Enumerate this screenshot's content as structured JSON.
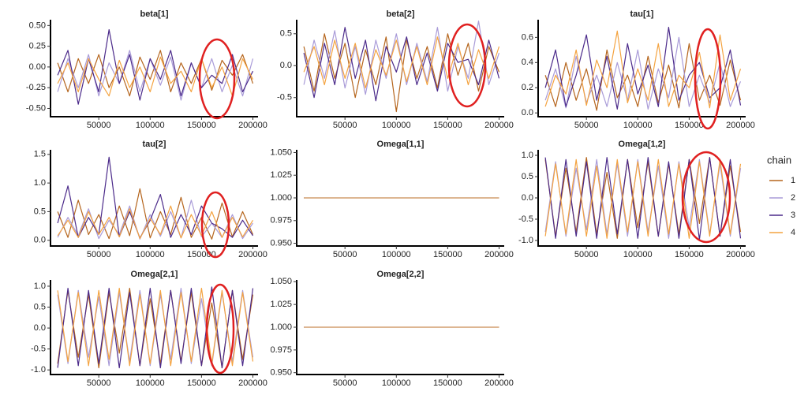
{
  "legend_title": "chain",
  "chart_data": [
    {
      "type": "line",
      "title": "beta[1]",
      "x": [
        10000,
        20000,
        30000,
        40000,
        50000,
        60000,
        70000,
        80000,
        90000,
        100000,
        110000,
        120000,
        130000,
        140000,
        150000,
        160000,
        170000,
        180000,
        190000,
        200000
      ],
      "xlim": [
        3000,
        205000
      ],
      "xticks": [
        50000,
        100000,
        150000,
        200000
      ],
      "ylim": [
        -0.6,
        0.57
      ],
      "yticks": [
        {
          "value": -0.5,
          "label": "-0.50"
        },
        -0.25,
        {
          "value": 0,
          "label": "0.00"
        },
        0.25,
        {
          "value": 0.5,
          "label": "0.50"
        }
      ],
      "series": [
        {
          "name": "1",
          "color": "#b5651d",
          "values": [
            0.05,
            -0.3,
            0.1,
            -0.2,
            0.15,
            -0.25,
            0.0,
            -0.35,
            0.12,
            -0.15,
            0.2,
            -0.3,
            0.05,
            -0.2,
            0.1,
            -0.28,
            0.08,
            -0.1,
            0.15,
            -0.2
          ]
        },
        {
          "name": "2",
          "color": "#a99bd8",
          "values": [
            -0.3,
            0.1,
            -0.25,
            0.15,
            -0.35,
            0.05,
            -0.2,
            0.2,
            -0.3,
            0.1,
            -0.22,
            0.12,
            -0.4,
            0.05,
            -0.25,
            0.1,
            -0.3,
            0.02,
            -0.35,
            0.1
          ]
        },
        {
          "name": "3",
          "color": "#4b2a8a",
          "values": [
            -0.1,
            0.2,
            -0.45,
            0.1,
            -0.3,
            0.45,
            -0.2,
            0.15,
            -0.4,
            0.1,
            -0.15,
            0.2,
            -0.35,
            0.05,
            -0.25,
            -0.1,
            -0.2,
            0.15,
            -0.3,
            -0.05
          ]
        },
        {
          "name": "4",
          "color": "#f4a340",
          "values": [
            -0.2,
            0.05,
            -0.3,
            0.1,
            -0.15,
            -0.35,
            0.08,
            -0.25,
            0.0,
            -0.3,
            0.12,
            -0.2,
            -0.05,
            -0.3,
            0.1,
            -0.25,
            0.0,
            -0.35,
            0.1,
            -0.15
          ]
        }
      ]
    },
    {
      "type": "line",
      "title": "beta[2]",
      "x": [
        10000,
        20000,
        30000,
        40000,
        50000,
        60000,
        70000,
        80000,
        90000,
        100000,
        110000,
        120000,
        130000,
        140000,
        150000,
        160000,
        170000,
        180000,
        190000,
        200000
      ],
      "xlim": [
        3000,
        205000
      ],
      "xticks": [
        50000,
        100000,
        150000,
        200000
      ],
      "ylim": [
        -0.8,
        0.72
      ],
      "yticks": [
        -0.5,
        {
          "value": 0,
          "label": "0.0"
        },
        0.5
      ],
      "series": [
        {
          "name": "1",
          "color": "#b5651d",
          "values": [
            0.3,
            -0.4,
            0.5,
            -0.2,
            0.35,
            -0.5,
            0.25,
            -0.3,
            0.45,
            -0.72,
            0.4,
            -0.2,
            0.3,
            -0.35,
            0.5,
            -0.15,
            0.35,
            -0.4,
            0.3,
            -0.1
          ]
        },
        {
          "name": "2",
          "color": "#a99bd8",
          "values": [
            -0.3,
            0.4,
            -0.2,
            0.55,
            -0.35,
            0.3,
            -0.45,
            0.4,
            -0.2,
            0.5,
            -0.3,
            0.35,
            -0.25,
            0.6,
            -0.4,
            0.3,
            -0.2,
            0.7,
            -0.3,
            0.2
          ]
        },
        {
          "name": "3",
          "color": "#4b2a8a",
          "values": [
            0.2,
            -0.5,
            0.35,
            -0.3,
            0.6,
            -0.2,
            0.4,
            -0.55,
            0.3,
            -0.1,
            0.45,
            -0.3,
            0.2,
            -0.4,
            0.35,
            0.05,
            0.1,
            -0.3,
            0.4,
            -0.2
          ]
        },
        {
          "name": "4",
          "color": "#f4a340",
          "values": [
            -0.1,
            0.3,
            -0.3,
            0.4,
            -0.2,
            0.35,
            -0.35,
            0.25,
            -0.15,
            0.4,
            -0.25,
            0.3,
            -0.3,
            0.45,
            -0.2,
            0.35,
            -0.3,
            0.25,
            -0.2,
            0.3
          ]
        }
      ]
    },
    {
      "type": "line",
      "title": "tau[1]",
      "x": [
        10000,
        20000,
        30000,
        40000,
        50000,
        60000,
        70000,
        80000,
        90000,
        100000,
        110000,
        120000,
        130000,
        140000,
        150000,
        160000,
        170000,
        180000,
        190000,
        200000
      ],
      "xlim": [
        3000,
        205000
      ],
      "xticks": [
        50000,
        100000,
        150000,
        200000
      ],
      "ylim": [
        -0.03,
        0.74
      ],
      "yticks": [
        {
          "value": 0,
          "label": "0.0"
        },
        0.2,
        0.4,
        0.6
      ],
      "series": [
        {
          "name": "1",
          "color": "#b5651d",
          "values": [
            0.3,
            0.05,
            0.4,
            0.1,
            0.35,
            0.02,
            0.5,
            0.12,
            0.3,
            0.05,
            0.45,
            0.08,
            0.38,
            0.04,
            0.55,
            0.1,
            0.3,
            0.06,
            0.42,
            0.1
          ]
        },
        {
          "name": "2",
          "color": "#a99bd8",
          "values": [
            0.1,
            0.35,
            0.04,
            0.45,
            0.08,
            0.3,
            0.05,
            0.4,
            0.1,
            0.5,
            0.03,
            0.35,
            0.12,
            0.6,
            0.05,
            0.3,
            0.08,
            0.4,
            0.05,
            0.25
          ]
        },
        {
          "name": "3",
          "color": "#4b2a8a",
          "values": [
            0.2,
            0.5,
            0.05,
            0.3,
            0.62,
            0.1,
            0.45,
            0.03,
            0.55,
            0.15,
            0.38,
            0.05,
            0.68,
            0.1,
            0.3,
            0.4,
            0.12,
            0.2,
            0.5,
            0.06
          ]
        },
        {
          "name": "4",
          "color": "#f4a340",
          "values": [
            0.05,
            0.3,
            0.15,
            0.5,
            0.06,
            0.42,
            0.2,
            0.65,
            0.08,
            0.35,
            0.1,
            0.55,
            0.05,
            0.3,
            0.2,
            0.48,
            0.04,
            0.62,
            0.1,
            0.35
          ]
        }
      ]
    },
    {
      "type": "line",
      "title": "tau[2]",
      "x": [
        10000,
        20000,
        30000,
        40000,
        50000,
        60000,
        70000,
        80000,
        90000,
        100000,
        110000,
        120000,
        130000,
        140000,
        150000,
        160000,
        170000,
        180000,
        190000,
        200000
      ],
      "xlim": [
        3000,
        205000
      ],
      "xticks": [
        50000,
        100000,
        150000,
        200000
      ],
      "ylim": [
        -0.1,
        1.58
      ],
      "yticks": [
        {
          "value": 0,
          "label": "0.0"
        },
        0.5,
        {
          "value": 1,
          "label": "1.0"
        },
        1.5
      ],
      "series": [
        {
          "name": "1",
          "color": "#b5651d",
          "values": [
            0.5,
            0.05,
            0.7,
            0.1,
            0.45,
            0.03,
            0.6,
            0.08,
            0.9,
            0.04,
            0.5,
            0.1,
            0.75,
            0.05,
            0.4,
            0.02,
            0.65,
            0.06,
            0.5,
            0.1
          ]
        },
        {
          "name": "2",
          "color": "#a99bd8",
          "values": [
            0.05,
            0.4,
            0.08,
            0.55,
            0.03,
            0.35,
            0.1,
            0.6,
            0.02,
            0.45,
            0.07,
            0.5,
            0.04,
            0.7,
            0.06,
            0.3,
            0.05,
            0.45,
            0.03,
            0.3
          ]
        },
        {
          "name": "3",
          "color": "#4b2a8a",
          "values": [
            0.3,
            0.95,
            0.05,
            0.4,
            0.1,
            1.45,
            0.06,
            0.5,
            0.04,
            0.35,
            0.8,
            0.05,
            0.45,
            0.1,
            0.6,
            0.3,
            0.2,
            0.05,
            0.35,
            0.08
          ]
        },
        {
          "name": "4",
          "color": "#f4a340",
          "values": [
            0.08,
            0.35,
            0.05,
            0.5,
            0.1,
            0.4,
            0.06,
            0.55,
            0.03,
            0.38,
            0.1,
            0.6,
            0.04,
            0.45,
            0.08,
            0.5,
            0.05,
            0.4,
            0.06,
            0.35
          ]
        }
      ]
    },
    {
      "type": "line",
      "title": "Omega[1,1]",
      "x": [
        10000,
        200000
      ],
      "xlim": [
        3000,
        205000
      ],
      "xticks": [
        50000,
        100000,
        150000,
        200000
      ],
      "ylim": [
        0.947,
        1.053
      ],
      "yticks": [
        {
          "value": 0.95,
          "label": "0.950"
        },
        0.975,
        {
          "value": 1,
          "label": "1.000"
        },
        1.025,
        {
          "value": 1.05,
          "label": "1.050"
        }
      ],
      "series": [
        {
          "name": "1",
          "color": "#b5651d",
          "values": [
            1,
            1
          ]
        },
        {
          "name": "2",
          "color": "#a99bd8",
          "values": [
            1,
            1
          ]
        },
        {
          "name": "3",
          "color": "#4b2a8a",
          "values": [
            1,
            1
          ]
        },
        {
          "name": "4",
          "color": "#f4c27a",
          "values": [
            1,
            1
          ]
        }
      ]
    },
    {
      "type": "line",
      "title": "Omega[1,2]",
      "x": [
        10000,
        20000,
        30000,
        40000,
        50000,
        60000,
        70000,
        80000,
        90000,
        100000,
        110000,
        120000,
        130000,
        140000,
        150000,
        160000,
        170000,
        180000,
        190000,
        200000
      ],
      "xlim": [
        3000,
        205000
      ],
      "xticks": [
        50000,
        100000,
        150000,
        200000
      ],
      "ylim": [
        -1.13,
        1.13
      ],
      "yticks": [
        {
          "value": -1,
          "label": "-1.0"
        },
        -0.5,
        {
          "value": 0,
          "label": "0.0"
        },
        0.5,
        {
          "value": 1,
          "label": "1.0"
        }
      ],
      "series": [
        {
          "name": "1",
          "color": "#b5651d",
          "values": [
            0.9,
            -0.9,
            0.7,
            -0.8,
            0.95,
            -0.85,
            0.6,
            -0.95,
            0.9,
            -0.7,
            0.85,
            -0.9,
            0.8,
            -0.85,
            0.9,
            -0.6,
            0.95,
            -0.9,
            0.75,
            -0.8
          ]
        },
        {
          "name": "2",
          "color": "#a99bd8",
          "values": [
            -0.8,
            0.85,
            -0.9,
            0.7,
            -0.75,
            0.9,
            -0.85,
            0.8,
            -0.9,
            0.9,
            -0.8,
            0.75,
            -0.95,
            0.85,
            -0.7,
            0.9,
            -0.85,
            0.8,
            -0.9,
            0.7
          ]
        },
        {
          "name": "3",
          "color": "#4b2a8a",
          "values": [
            0.95,
            -0.95,
            0.9,
            -0.9,
            0.85,
            -0.95,
            0.95,
            -0.85,
            0.9,
            -0.95,
            0.95,
            -0.9,
            0.85,
            -0.95,
            0.9,
            -0.98,
            0.95,
            -0.9,
            0.9,
            -0.95
          ]
        },
        {
          "name": "4",
          "color": "#f4a340",
          "values": [
            -0.9,
            0.8,
            -0.85,
            0.9,
            -0.9,
            0.75,
            -0.95,
            0.9,
            -0.8,
            0.85,
            -0.9,
            0.9,
            -0.85,
            0.8,
            -0.95,
            0.85,
            -0.9,
            0.9,
            -0.85,
            0.8
          ]
        }
      ]
    },
    {
      "type": "line",
      "title": "Omega[2,1]",
      "x": [
        10000,
        20000,
        30000,
        40000,
        50000,
        60000,
        70000,
        80000,
        90000,
        100000,
        110000,
        120000,
        130000,
        140000,
        150000,
        160000,
        170000,
        180000,
        190000,
        200000
      ],
      "xlim": [
        3000,
        205000
      ],
      "xticks": [
        50000,
        100000,
        150000,
        200000
      ],
      "ylim": [
        -1.11,
        1.15
      ],
      "yticks": [
        {
          "value": -1,
          "label": "-1.0"
        },
        -0.5,
        {
          "value": 0,
          "label": "0.0"
        },
        0.5,
        {
          "value": 1,
          "label": "1.0"
        }
      ],
      "series": [
        {
          "name": "1",
          "color": "#b5651d",
          "values": [
            -0.85,
            0.9,
            -0.7,
            0.8,
            -0.95,
            0.85,
            -0.6,
            0.95,
            -0.9,
            0.7,
            -0.85,
            0.9,
            -0.8,
            0.85,
            -0.9,
            0.6,
            -0.95,
            0.9,
            -0.75,
            0.8
          ]
        },
        {
          "name": "2",
          "color": "#a99bd8",
          "values": [
            0.8,
            -0.85,
            0.9,
            -0.7,
            0.75,
            -0.9,
            0.85,
            -0.8,
            0.9,
            -0.9,
            0.8,
            -0.75,
            0.95,
            -0.85,
            0.7,
            -0.9,
            0.85,
            -0.8,
            0.9,
            -0.7
          ]
        },
        {
          "name": "3",
          "color": "#4b2a8a",
          "values": [
            -0.95,
            0.95,
            -0.9,
            0.9,
            -0.85,
            0.95,
            -0.95,
            0.85,
            -0.9,
            0.95,
            -0.95,
            0.9,
            -0.85,
            0.95,
            -0.9,
            0.98,
            -0.95,
            0.9,
            -0.9,
            0.95
          ]
        },
        {
          "name": "4",
          "color": "#f4a340",
          "values": [
            0.9,
            -0.8,
            0.85,
            -0.9,
            0.9,
            -0.75,
            0.95,
            -0.9,
            0.8,
            -0.85,
            0.9,
            -0.9,
            0.85,
            -0.8,
            0.95,
            -0.85,
            0.9,
            -0.9,
            0.85,
            -0.8
          ]
        }
      ]
    },
    {
      "type": "line",
      "title": "Omega[2,2]",
      "x": [
        10000,
        200000
      ],
      "xlim": [
        3000,
        205000
      ],
      "xticks": [
        50000,
        100000,
        150000,
        200000
      ],
      "ylim": [
        0.948,
        1.052
      ],
      "yticks": [
        {
          "value": 0.95,
          "label": "0.950"
        },
        0.975,
        {
          "value": 1,
          "label": "1.000"
        },
        1.025,
        {
          "value": 1.05,
          "label": "1.050"
        }
      ],
      "series": [
        {
          "name": "1",
          "color": "#b5651d",
          "values": [
            1,
            1
          ]
        },
        {
          "name": "2",
          "color": "#a99bd8",
          "values": [
            1,
            1
          ]
        },
        {
          "name": "3",
          "color": "#4b2a8a",
          "values": [
            1,
            1
          ]
        },
        {
          "name": "4",
          "color": "#f4c27a",
          "values": [
            1,
            1
          ]
        }
      ]
    }
  ]
}
